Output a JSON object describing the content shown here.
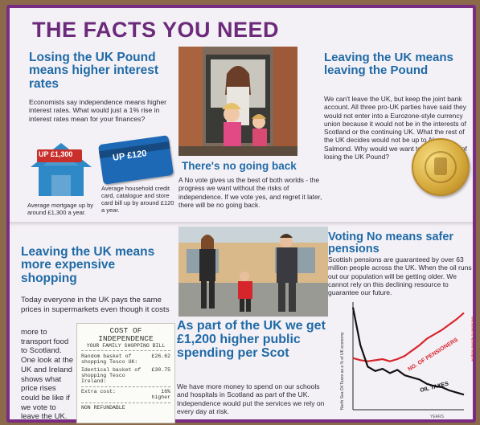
{
  "title": "THE FACTS YOU NEED",
  "pound": {
    "heading": "Losing the UK Pound means higher interest rates",
    "body": "Economists say independence means higher interest rates. What would just a 1% rise in interest rates mean for your finances?",
    "house_figure": "UP £1,300",
    "card_figure": "UP £120",
    "house_caption": "Average mortgage up by around £1,300 a year.",
    "card_caption": "Average household credit card, catalogue and store card bill up by around £120 a year."
  },
  "no_going_back": {
    "heading": "There's no going back",
    "body": "A No vote gives us the best of both worlds - the progress we want without the risks of independence. If we vote yes, and regret it later, there will be no going back."
  },
  "leaving_pound": {
    "heading": "Leaving the UK means leaving the Pound",
    "body": "We can't leave the UK, but keep the joint bank account. All three pro-UK parties have said they would not enter into a Eurozone-style currency union because it would not be in the interests of Scotland or the continuing UK. What the rest of the UK decides would not be up to Alex Salmond. Why would we want to take the risk of losing the UK Pound?"
  },
  "shopping": {
    "heading": "Leaving the UK means more expensive shopping",
    "body": "Today everyone in the UK pays the same prices in supermarkets even though it costs more to transport food to Scotland. One look at the UK and Ireland shows what price rises could be like if we vote to leave the UK."
  },
  "receipt": {
    "title": "COST OF INDEPENDENCE",
    "subtitle": "YOUR FAMILY SHOPPING BILL",
    "row1_label": "Random basket of shopping Tesco UK:",
    "row1_value": "£26.62",
    "row2_label": "Identical basket of shopping Tesco Ireland:",
    "row2_value": "£30.75",
    "row3_label": "Extra cost:",
    "row3_value": "16% higher",
    "footer": "NON REFUNDABLE"
  },
  "spending": {
    "heading": "As part of the UK we get £1,200 higher public spending per Scot",
    "body": "We have more money to spend on our schools and hospitals in Scotland as part of the UK. Independence would put the services we rely on every day at risk."
  },
  "pensions": {
    "heading": "Voting No means safer pensions",
    "body": "Scottish pensions are guaranteed by over 63 million people across the UK. When the oil runs out our population will be getting older. We cannot rely on this declining resource to guarantee our future."
  },
  "chart_data": {
    "type": "line",
    "xlabel": "YEARS",
    "ylabel": "North Sea Oil Taxes as a % of UK economy",
    "ylabel_right": "working people to pensioner",
    "x": [
      0,
      1,
      2,
      3,
      4,
      5,
      6,
      7,
      8,
      9,
      10,
      11,
      12,
      13,
      14,
      15
    ],
    "series": [
      {
        "name": "NO. OF PENSIONERS",
        "color": "#d8262d",
        "values": [
          48,
          46,
          45,
          46,
          47,
          45,
          47,
          50,
          55,
          60,
          66,
          70,
          74,
          79,
          84,
          90
        ]
      },
      {
        "name": "OIL TAXES",
        "color": "#111111",
        "values": [
          95,
          60,
          40,
          36,
          38,
          34,
          37,
          32,
          30,
          28,
          24,
          22,
          21,
          18,
          16,
          14
        ]
      }
    ],
    "ylim": [
      0,
      100
    ]
  }
}
